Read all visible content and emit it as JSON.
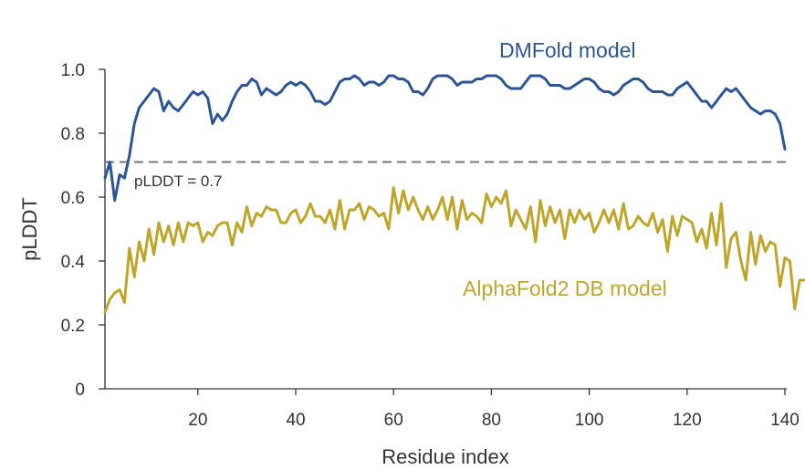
{
  "chart_data": {
    "type": "line",
    "xlabel": "Residue index",
    "ylabel": "pLDDT",
    "xlim": [
      1,
      140
    ],
    "ylim": [
      0,
      1.0
    ],
    "x_ticks": [
      20,
      40,
      60,
      80,
      100,
      120,
      140
    ],
    "y_ticks": [
      0,
      0.2,
      0.4,
      0.6,
      0.8,
      1.0
    ],
    "x_tick_labels": [
      "20",
      "40",
      "60",
      "80",
      "100",
      "120",
      "140"
    ],
    "y_tick_labels": [
      "0",
      "0.2",
      "0.4",
      "0.6",
      "0.8",
      "1.0"
    ],
    "grid": false,
    "threshold": {
      "value": 0.71,
      "label": "pLDDT = 0.7",
      "color": "#777777"
    },
    "series": [
      {
        "name": "DMFold model",
        "color": "#2b5597",
        "values": [
          0.66,
          0.71,
          0.59,
          0.67,
          0.66,
          0.73,
          0.83,
          0.88,
          0.9,
          0.92,
          0.94,
          0.93,
          0.87,
          0.9,
          0.88,
          0.87,
          0.89,
          0.91,
          0.93,
          0.92,
          0.93,
          0.91,
          0.83,
          0.86,
          0.84,
          0.86,
          0.9,
          0.93,
          0.95,
          0.95,
          0.97,
          0.96,
          0.92,
          0.94,
          0.93,
          0.92,
          0.93,
          0.95,
          0.96,
          0.95,
          0.96,
          0.95,
          0.93,
          0.9,
          0.9,
          0.89,
          0.9,
          0.93,
          0.96,
          0.97,
          0.97,
          0.98,
          0.97,
          0.95,
          0.96,
          0.96,
          0.95,
          0.96,
          0.98,
          0.98,
          0.97,
          0.97,
          0.96,
          0.93,
          0.93,
          0.92,
          0.94,
          0.97,
          0.98,
          0.98,
          0.98,
          0.97,
          0.95,
          0.96,
          0.96,
          0.96,
          0.97,
          0.97,
          0.98,
          0.98,
          0.98,
          0.97,
          0.95,
          0.94,
          0.94,
          0.94,
          0.96,
          0.98,
          0.98,
          0.98,
          0.97,
          0.95,
          0.95,
          0.95,
          0.94,
          0.94,
          0.95,
          0.96,
          0.97,
          0.97,
          0.96,
          0.94,
          0.93,
          0.93,
          0.92,
          0.93,
          0.95,
          0.96,
          0.97,
          0.97,
          0.96,
          0.94,
          0.93,
          0.93,
          0.93,
          0.92,
          0.92,
          0.94,
          0.95,
          0.96,
          0.94,
          0.92,
          0.9,
          0.9,
          0.88,
          0.9,
          0.92,
          0.94,
          0.93,
          0.94,
          0.92,
          0.9,
          0.88,
          0.87,
          0.86,
          0.87,
          0.87,
          0.86,
          0.83,
          0.75
        ]
      },
      {
        "name": "AlphaFold2 DB model",
        "color": "#bfa52a",
        "values": [
          0.24,
          0.28,
          0.3,
          0.31,
          0.27,
          0.44,
          0.35,
          0.46,
          0.4,
          0.5,
          0.42,
          0.52,
          0.46,
          0.51,
          0.45,
          0.52,
          0.46,
          0.52,
          0.51,
          0.52,
          0.46,
          0.49,
          0.48,
          0.51,
          0.52,
          0.52,
          0.45,
          0.52,
          0.49,
          0.57,
          0.51,
          0.55,
          0.54,
          0.57,
          0.56,
          0.56,
          0.52,
          0.52,
          0.55,
          0.56,
          0.52,
          0.54,
          0.58,
          0.54,
          0.54,
          0.52,
          0.56,
          0.5,
          0.59,
          0.5,
          0.56,
          0.56,
          0.58,
          0.53,
          0.57,
          0.56,
          0.54,
          0.55,
          0.5,
          0.63,
          0.55,
          0.62,
          0.56,
          0.6,
          0.56,
          0.53,
          0.57,
          0.53,
          0.56,
          0.6,
          0.53,
          0.6,
          0.5,
          0.59,
          0.53,
          0.55,
          0.54,
          0.52,
          0.61,
          0.57,
          0.6,
          0.58,
          0.62,
          0.51,
          0.56,
          0.53,
          0.5,
          0.57,
          0.46,
          0.59,
          0.51,
          0.57,
          0.52,
          0.56,
          0.47,
          0.56,
          0.52,
          0.56,
          0.53,
          0.55,
          0.49,
          0.52,
          0.56,
          0.52,
          0.56,
          0.5,
          0.58,
          0.5,
          0.51,
          0.54,
          0.52,
          0.51,
          0.55,
          0.49,
          0.53,
          0.43,
          0.54,
          0.48,
          0.54,
          0.53,
          0.52,
          0.46,
          0.5,
          0.44,
          0.55,
          0.45,
          0.58,
          0.38,
          0.47,
          0.49,
          0.4,
          0.34,
          0.49,
          0.39,
          0.48,
          0.43,
          0.46,
          0.45,
          0.32,
          0.41,
          0.4,
          0.25,
          0.34,
          0.34
        ]
      }
    ]
  }
}
